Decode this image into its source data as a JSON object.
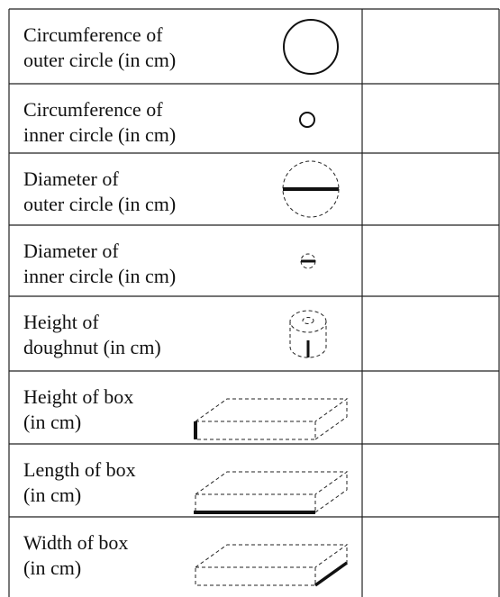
{
  "table": {
    "rows": [
      {
        "label": [
          "Circumference of",
          "outer circle (in cm)"
        ]
      },
      {
        "label": [
          "Circumference of",
          "inner circle (in cm)"
        ]
      },
      {
        "label": [
          "Diameter of",
          "outer circle (in cm)"
        ]
      },
      {
        "label": [
          "Diameter of",
          "inner circle (in cm)"
        ]
      },
      {
        "label": [
          "Height of",
          "doughnut (in cm)"
        ]
      },
      {
        "label": [
          "Height of box",
          "(in cm)"
        ]
      },
      {
        "label": [
          "Length of box",
          "(in cm)"
        ]
      },
      {
        "label": [
          "Width of box",
          "(in cm)"
        ]
      }
    ]
  }
}
